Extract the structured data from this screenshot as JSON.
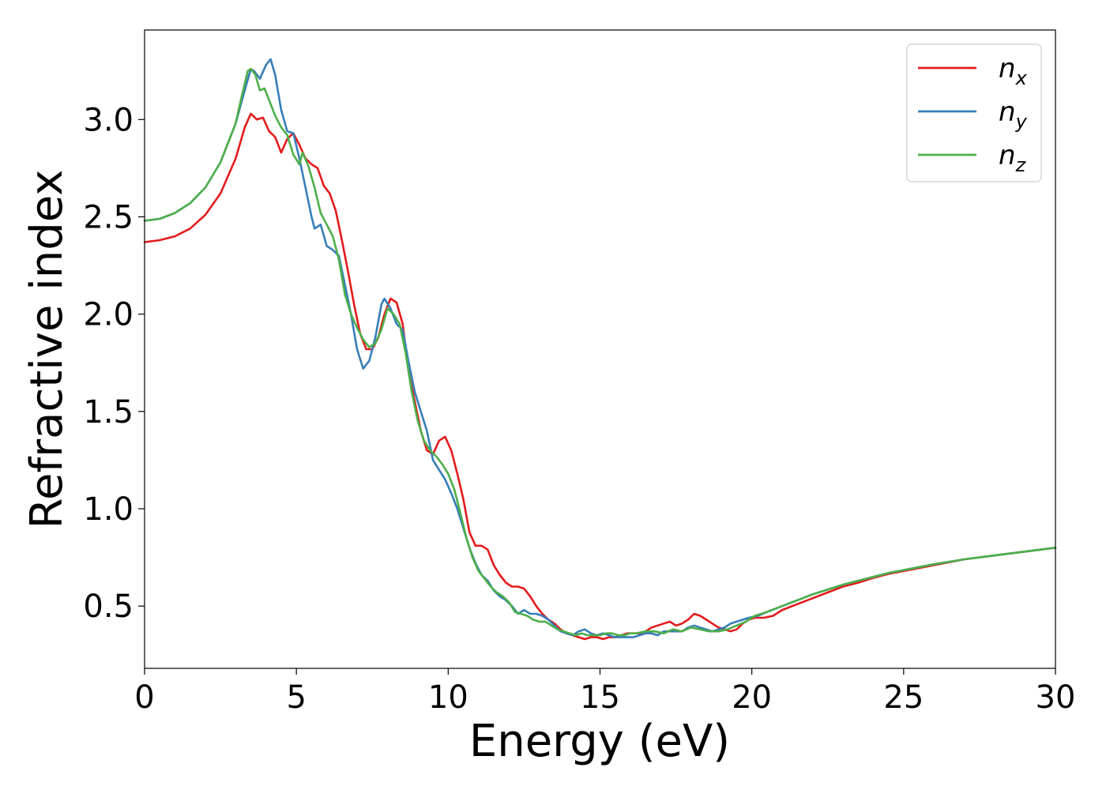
{
  "chart_data": {
    "type": "line",
    "title": "",
    "xlabel": "Energy (eV)",
    "ylabel": "Refractive index",
    "xlim": [
      0,
      30
    ],
    "ylim": [
      0.18,
      3.46
    ],
    "xticks": [
      0,
      5,
      10,
      15,
      20,
      25,
      30
    ],
    "yticks": [
      0.5,
      1.0,
      1.5,
      2.0,
      2.5,
      3.0
    ],
    "xtick_labels": [
      "0",
      "5",
      "10",
      "15",
      "20",
      "25",
      "30"
    ],
    "ytick_labels": [
      "0.5",
      "1.0",
      "1.5",
      "2.0",
      "2.5",
      "3.0"
    ],
    "grid": false,
    "legend_position": "top-right",
    "series": [
      {
        "name": "n",
        "subscript": "x",
        "color": "#e41a1c",
        "points": [
          [
            0,
            2.37
          ],
          [
            0.5,
            2.38
          ],
          [
            1,
            2.4
          ],
          [
            1.5,
            2.44
          ],
          [
            2,
            2.51
          ],
          [
            2.5,
            2.62
          ],
          [
            3,
            2.8
          ],
          [
            3.3,
            2.96
          ],
          [
            3.5,
            3.03
          ],
          [
            3.7,
            3.0
          ],
          [
            3.9,
            3.01
          ],
          [
            4.1,
            2.94
          ],
          [
            4.3,
            2.91
          ],
          [
            4.5,
            2.83
          ],
          [
            4.7,
            2.9
          ],
          [
            4.9,
            2.93
          ],
          [
            5.1,
            2.87
          ],
          [
            5.3,
            2.8
          ],
          [
            5.5,
            2.77
          ],
          [
            5.7,
            2.75
          ],
          [
            5.9,
            2.66
          ],
          [
            6.1,
            2.62
          ],
          [
            6.3,
            2.53
          ],
          [
            6.5,
            2.38
          ],
          [
            6.7,
            2.22
          ],
          [
            6.9,
            2.05
          ],
          [
            7.1,
            1.9
          ],
          [
            7.3,
            1.82
          ],
          [
            7.5,
            1.82
          ],
          [
            7.7,
            1.88
          ],
          [
            7.9,
            2.0
          ],
          [
            8.1,
            2.08
          ],
          [
            8.3,
            2.06
          ],
          [
            8.5,
            1.95
          ],
          [
            8.7,
            1.7
          ],
          [
            8.9,
            1.55
          ],
          [
            9.1,
            1.4
          ],
          [
            9.3,
            1.3
          ],
          [
            9.5,
            1.28
          ],
          [
            9.7,
            1.35
          ],
          [
            9.9,
            1.37
          ],
          [
            10.1,
            1.3
          ],
          [
            10.3,
            1.18
          ],
          [
            10.5,
            1.05
          ],
          [
            10.7,
            0.88
          ],
          [
            10.9,
            0.81
          ],
          [
            11.1,
            0.81
          ],
          [
            11.3,
            0.79
          ],
          [
            11.5,
            0.71
          ],
          [
            11.7,
            0.66
          ],
          [
            11.9,
            0.62
          ],
          [
            12.1,
            0.6
          ],
          [
            12.3,
            0.6
          ],
          [
            12.5,
            0.59
          ],
          [
            12.7,
            0.55
          ],
          [
            12.9,
            0.5
          ],
          [
            13.1,
            0.46
          ],
          [
            13.3,
            0.43
          ],
          [
            13.5,
            0.41
          ],
          [
            13.7,
            0.38
          ],
          [
            13.9,
            0.36
          ],
          [
            14.1,
            0.35
          ],
          [
            14.3,
            0.34
          ],
          [
            14.5,
            0.33
          ],
          [
            14.7,
            0.34
          ],
          [
            14.9,
            0.34
          ],
          [
            15.1,
            0.33
          ],
          [
            15.3,
            0.34
          ],
          [
            15.5,
            0.34
          ],
          [
            15.7,
            0.35
          ],
          [
            15.9,
            0.36
          ],
          [
            16.1,
            0.36
          ],
          [
            16.3,
            0.36
          ],
          [
            16.5,
            0.37
          ],
          [
            16.7,
            0.39
          ],
          [
            16.9,
            0.4
          ],
          [
            17.1,
            0.41
          ],
          [
            17.3,
            0.42
          ],
          [
            17.5,
            0.4
          ],
          [
            17.7,
            0.41
          ],
          [
            17.9,
            0.43
          ],
          [
            18.1,
            0.46
          ],
          [
            18.3,
            0.45
          ],
          [
            18.5,
            0.43
          ],
          [
            18.7,
            0.41
          ],
          [
            18.9,
            0.39
          ],
          [
            19.1,
            0.38
          ],
          [
            19.3,
            0.37
          ],
          [
            19.5,
            0.38
          ],
          [
            19.7,
            0.41
          ],
          [
            19.9,
            0.43
          ],
          [
            20.1,
            0.44
          ],
          [
            20.4,
            0.44
          ],
          [
            20.7,
            0.45
          ],
          [
            21,
            0.48
          ],
          [
            21.5,
            0.51
          ],
          [
            22,
            0.54
          ],
          [
            22.5,
            0.57
          ],
          [
            23,
            0.6
          ],
          [
            23.5,
            0.62
          ],
          [
            24,
            0.645
          ],
          [
            24.5,
            0.665
          ],
          [
            25,
            0.68
          ],
          [
            26,
            0.71
          ],
          [
            27,
            0.74
          ],
          [
            28,
            0.76
          ],
          [
            29,
            0.78
          ],
          [
            30,
            0.8
          ]
        ]
      },
      {
        "name": "n",
        "subscript": "y",
        "color": "#377eb8",
        "points": [
          [
            0,
            2.48
          ],
          [
            0.5,
            2.49
          ],
          [
            1,
            2.52
          ],
          [
            1.5,
            2.57
          ],
          [
            2,
            2.65
          ],
          [
            2.5,
            2.78
          ],
          [
            3,
            2.98
          ],
          [
            3.3,
            3.15
          ],
          [
            3.5,
            3.26
          ],
          [
            3.6,
            3.25
          ],
          [
            3.8,
            3.21
          ],
          [
            4.0,
            3.28
          ],
          [
            4.15,
            3.31
          ],
          [
            4.3,
            3.23
          ],
          [
            4.5,
            3.05
          ],
          [
            4.7,
            2.94
          ],
          [
            4.9,
            2.93
          ],
          [
            5.1,
            2.8
          ],
          [
            5.3,
            2.65
          ],
          [
            5.5,
            2.5
          ],
          [
            5.6,
            2.44
          ],
          [
            5.8,
            2.46
          ],
          [
            6.0,
            2.35
          ],
          [
            6.2,
            2.33
          ],
          [
            6.4,
            2.3
          ],
          [
            6.6,
            2.15
          ],
          [
            6.8,
            2.0
          ],
          [
            7.0,
            1.82
          ],
          [
            7.2,
            1.72
          ],
          [
            7.4,
            1.76
          ],
          [
            7.6,
            1.88
          ],
          [
            7.8,
            2.05
          ],
          [
            7.9,
            2.08
          ],
          [
            8.1,
            2.03
          ],
          [
            8.3,
            1.95
          ],
          [
            8.5,
            1.92
          ],
          [
            8.7,
            1.75
          ],
          [
            8.9,
            1.6
          ],
          [
            9.1,
            1.5
          ],
          [
            9.3,
            1.4
          ],
          [
            9.5,
            1.25
          ],
          [
            9.7,
            1.2
          ],
          [
            9.9,
            1.15
          ],
          [
            10.1,
            1.08
          ],
          [
            10.3,
            1.0
          ],
          [
            10.5,
            0.9
          ],
          [
            10.7,
            0.8
          ],
          [
            10.9,
            0.72
          ],
          [
            11.1,
            0.66
          ],
          [
            11.3,
            0.63
          ],
          [
            11.5,
            0.58
          ],
          [
            11.7,
            0.55
          ],
          [
            11.9,
            0.53
          ],
          [
            12.1,
            0.5
          ],
          [
            12.3,
            0.46
          ],
          [
            12.5,
            0.48
          ],
          [
            12.7,
            0.46
          ],
          [
            12.9,
            0.46
          ],
          [
            13.1,
            0.45
          ],
          [
            13.3,
            0.43
          ],
          [
            13.5,
            0.4
          ],
          [
            13.7,
            0.37
          ],
          [
            13.9,
            0.36
          ],
          [
            14.1,
            0.35
          ],
          [
            14.3,
            0.37
          ],
          [
            14.5,
            0.38
          ],
          [
            14.7,
            0.36
          ],
          [
            14.9,
            0.35
          ],
          [
            15.1,
            0.36
          ],
          [
            15.3,
            0.35
          ],
          [
            15.5,
            0.34
          ],
          [
            15.7,
            0.34
          ],
          [
            15.9,
            0.34
          ],
          [
            16.1,
            0.34
          ],
          [
            16.3,
            0.35
          ],
          [
            16.5,
            0.36
          ],
          [
            16.7,
            0.36
          ],
          [
            16.9,
            0.35
          ],
          [
            17.1,
            0.37
          ],
          [
            17.3,
            0.37
          ],
          [
            17.5,
            0.37
          ],
          [
            17.7,
            0.37
          ],
          [
            17.9,
            0.39
          ],
          [
            18.1,
            0.4
          ],
          [
            18.3,
            0.39
          ],
          [
            18.5,
            0.38
          ],
          [
            18.7,
            0.37
          ],
          [
            18.9,
            0.38
          ],
          [
            19.1,
            0.39
          ],
          [
            19.3,
            0.41
          ],
          [
            19.5,
            0.42
          ],
          [
            19.7,
            0.43
          ],
          [
            19.9,
            0.44
          ],
          [
            20.2,
            0.45
          ],
          [
            20.5,
            0.47
          ],
          [
            21,
            0.5
          ],
          [
            21.5,
            0.53
          ],
          [
            22,
            0.56
          ],
          [
            22.5,
            0.585
          ],
          [
            23,
            0.61
          ],
          [
            23.5,
            0.63
          ],
          [
            24,
            0.65
          ],
          [
            24.5,
            0.67
          ],
          [
            25,
            0.685
          ],
          [
            26,
            0.715
          ],
          [
            27,
            0.74
          ],
          [
            28,
            0.76
          ],
          [
            29,
            0.78
          ],
          [
            30,
            0.8
          ]
        ]
      },
      {
        "name": "n",
        "subscript": "z",
        "color": "#4daf4a",
        "points": [
          [
            0,
            2.48
          ],
          [
            0.5,
            2.49
          ],
          [
            1,
            2.52
          ],
          [
            1.5,
            2.57
          ],
          [
            2,
            2.65
          ],
          [
            2.5,
            2.78
          ],
          [
            3,
            2.98
          ],
          [
            3.2,
            3.12
          ],
          [
            3.4,
            3.25
          ],
          [
            3.5,
            3.26
          ],
          [
            3.65,
            3.23
          ],
          [
            3.8,
            3.15
          ],
          [
            3.95,
            3.16
          ],
          [
            4.1,
            3.1
          ],
          [
            4.3,
            3.02
          ],
          [
            4.5,
            2.96
          ],
          [
            4.7,
            2.92
          ],
          [
            4.9,
            2.82
          ],
          [
            5.1,
            2.77
          ],
          [
            5.2,
            2.83
          ],
          [
            5.4,
            2.76
          ],
          [
            5.6,
            2.65
          ],
          [
            5.8,
            2.52
          ],
          [
            6.0,
            2.46
          ],
          [
            6.2,
            2.4
          ],
          [
            6.4,
            2.28
          ],
          [
            6.6,
            2.1
          ],
          [
            6.8,
            2.0
          ],
          [
            7.0,
            1.93
          ],
          [
            7.2,
            1.87
          ],
          [
            7.4,
            1.83
          ],
          [
            7.6,
            1.85
          ],
          [
            7.8,
            1.92
          ],
          [
            8.0,
            2.03
          ],
          [
            8.2,
            2.0
          ],
          [
            8.4,
            1.95
          ],
          [
            8.6,
            1.8
          ],
          [
            8.8,
            1.6
          ],
          [
            9.0,
            1.45
          ],
          [
            9.2,
            1.35
          ],
          [
            9.4,
            1.3
          ],
          [
            9.6,
            1.27
          ],
          [
            9.8,
            1.23
          ],
          [
            10.0,
            1.18
          ],
          [
            10.2,
            1.1
          ],
          [
            10.4,
            0.98
          ],
          [
            10.6,
            0.85
          ],
          [
            10.8,
            0.75
          ],
          [
            11.0,
            0.68
          ],
          [
            11.2,
            0.64
          ],
          [
            11.4,
            0.6
          ],
          [
            11.6,
            0.57
          ],
          [
            11.8,
            0.55
          ],
          [
            12.0,
            0.52
          ],
          [
            12.2,
            0.47
          ],
          [
            12.4,
            0.46
          ],
          [
            12.6,
            0.45
          ],
          [
            12.8,
            0.43
          ],
          [
            13.0,
            0.42
          ],
          [
            13.2,
            0.42
          ],
          [
            13.4,
            0.4
          ],
          [
            13.6,
            0.38
          ],
          [
            13.8,
            0.37
          ],
          [
            14.0,
            0.36
          ],
          [
            14.2,
            0.35
          ],
          [
            14.4,
            0.36
          ],
          [
            14.6,
            0.35
          ],
          [
            14.8,
            0.35
          ],
          [
            15.0,
            0.35
          ],
          [
            15.2,
            0.36
          ],
          [
            15.4,
            0.36
          ],
          [
            15.6,
            0.35
          ],
          [
            15.8,
            0.35
          ],
          [
            16.0,
            0.36
          ],
          [
            16.2,
            0.36
          ],
          [
            16.5,
            0.37
          ],
          [
            16.8,
            0.37
          ],
          [
            17.1,
            0.36
          ],
          [
            17.4,
            0.38
          ],
          [
            17.7,
            0.37
          ],
          [
            18.0,
            0.39
          ],
          [
            18.3,
            0.38
          ],
          [
            18.6,
            0.37
          ],
          [
            18.9,
            0.37
          ],
          [
            19.2,
            0.38
          ],
          [
            19.5,
            0.4
          ],
          [
            19.8,
            0.42
          ],
          [
            20.1,
            0.45
          ],
          [
            20.5,
            0.47
          ],
          [
            21,
            0.5
          ],
          [
            21.5,
            0.53
          ],
          [
            22,
            0.56
          ],
          [
            22.5,
            0.585
          ],
          [
            23,
            0.61
          ],
          [
            23.5,
            0.63
          ],
          [
            24,
            0.65
          ],
          [
            24.5,
            0.67
          ],
          [
            25,
            0.685
          ],
          [
            26,
            0.715
          ],
          [
            27,
            0.74
          ],
          [
            28,
            0.76
          ],
          [
            29,
            0.78
          ],
          [
            30,
            0.8
          ]
        ]
      }
    ]
  }
}
